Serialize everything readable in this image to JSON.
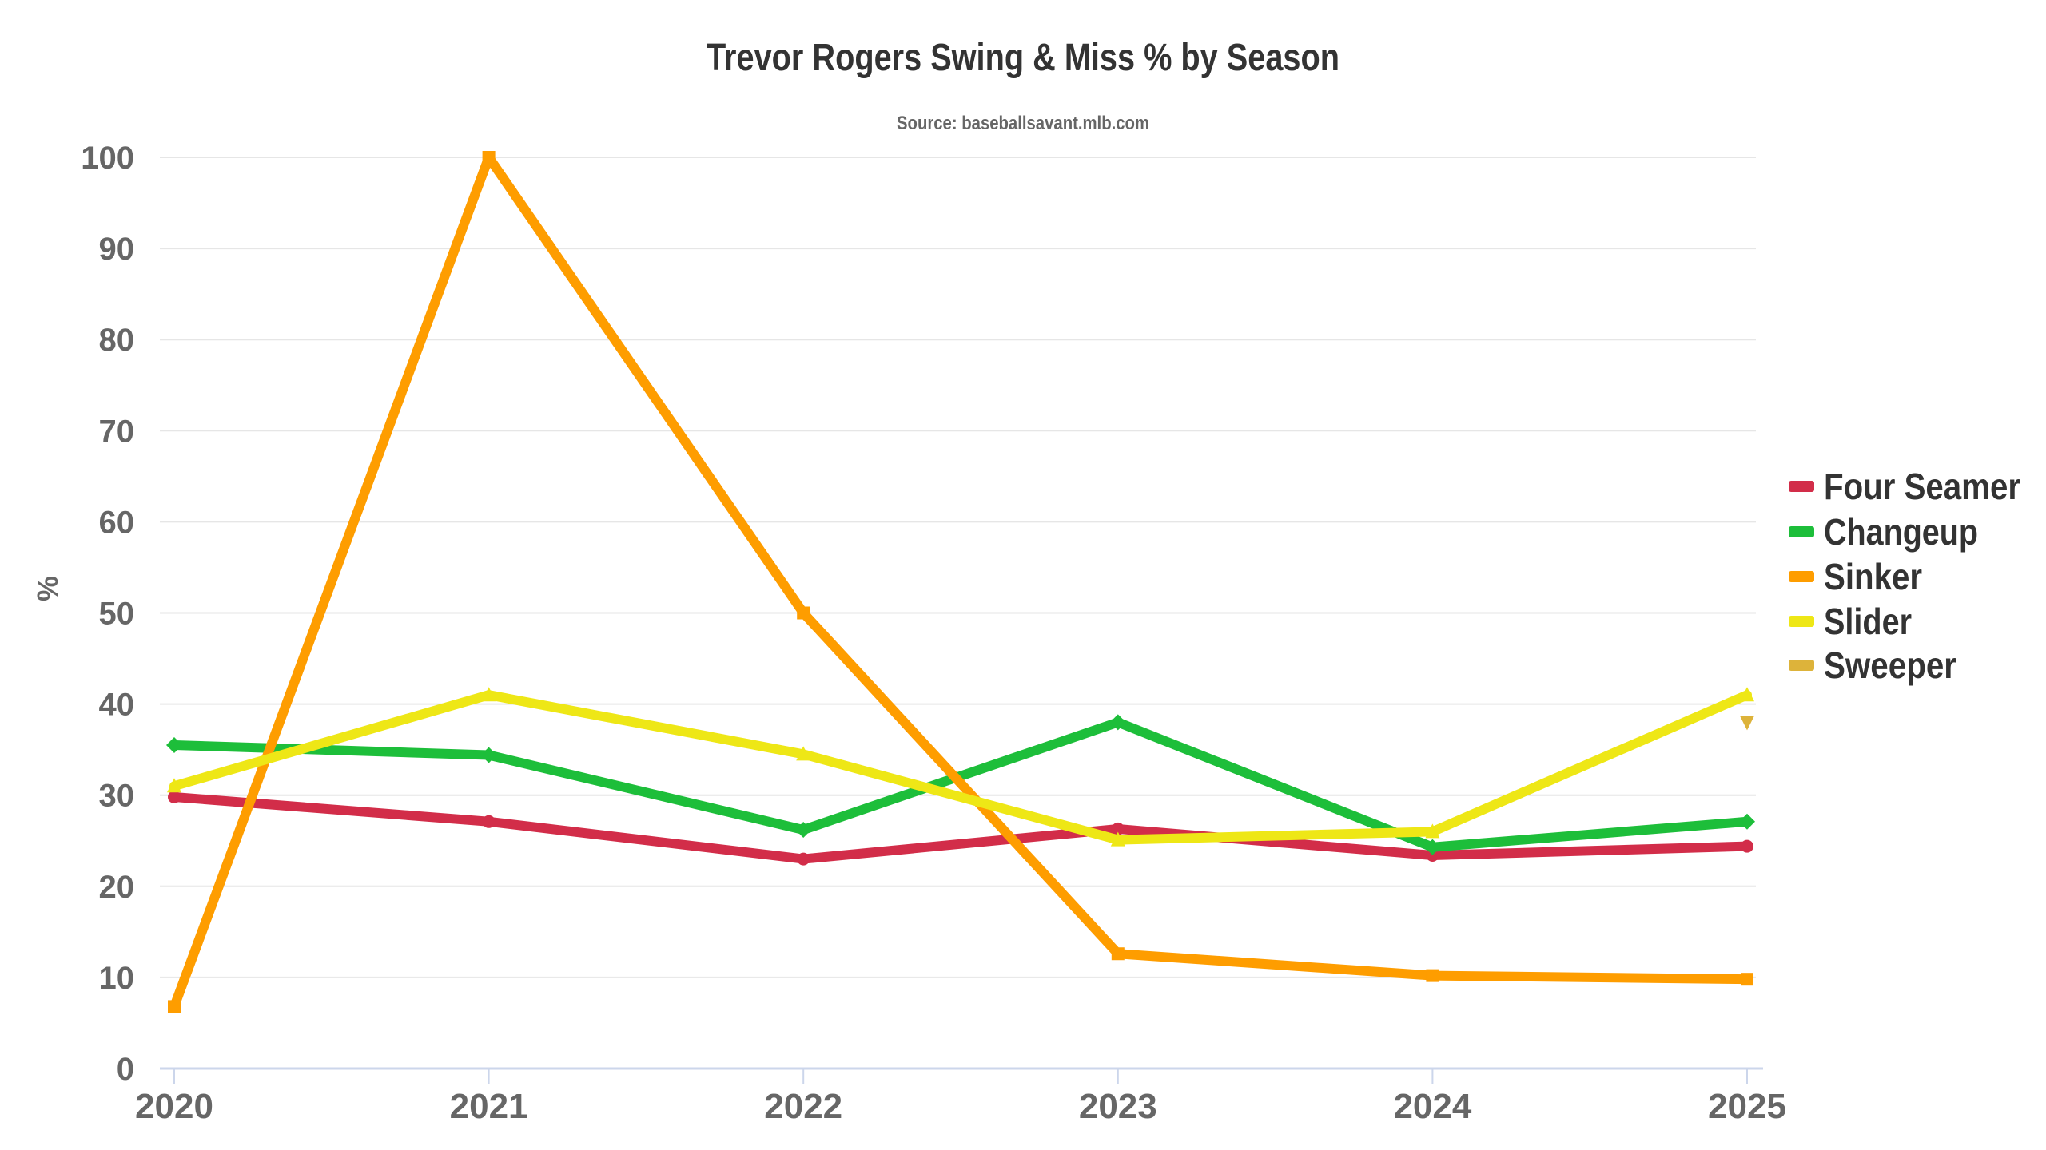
{
  "chart_data": {
    "type": "line",
    "title": "Trevor Rogers Swing & Miss % by Season",
    "subtitle": "Source: baseballsavant.mlb.com",
    "xlabel": "",
    "ylabel": "%",
    "ylim": [
      0,
      100
    ],
    "yticks": [
      0,
      10,
      20,
      30,
      40,
      50,
      60,
      70,
      80,
      90,
      100
    ],
    "grid": true,
    "legend_position": "right",
    "categories": [
      "2020",
      "2021",
      "2022",
      "2023",
      "2024",
      "2025"
    ],
    "series": [
      {
        "name": "Four Seamer",
        "color": "#D22D49",
        "marker": "circle",
        "values": [
          29.8,
          27.1,
          23.0,
          26.3,
          23.4,
          24.4
        ]
      },
      {
        "name": "Changeup",
        "color": "#1DBE3A",
        "marker": "diamond",
        "values": [
          35.5,
          34.4,
          26.2,
          38.0,
          24.3,
          27.1
        ]
      },
      {
        "name": "Sinker",
        "color": "#FE9D00",
        "marker": "square",
        "values": [
          6.8,
          100.0,
          50.0,
          12.6,
          10.2,
          9.8
        ]
      },
      {
        "name": "Slider",
        "color": "#EEE716",
        "marker": "triangle",
        "values": [
          31.0,
          41.0,
          34.5,
          25.1,
          26.0,
          41.0
        ]
      },
      {
        "name": "Sweeper",
        "color": "#DDB33A",
        "marker": "triangle-down",
        "values": [
          null,
          null,
          null,
          null,
          null,
          38.0
        ]
      }
    ]
  }
}
